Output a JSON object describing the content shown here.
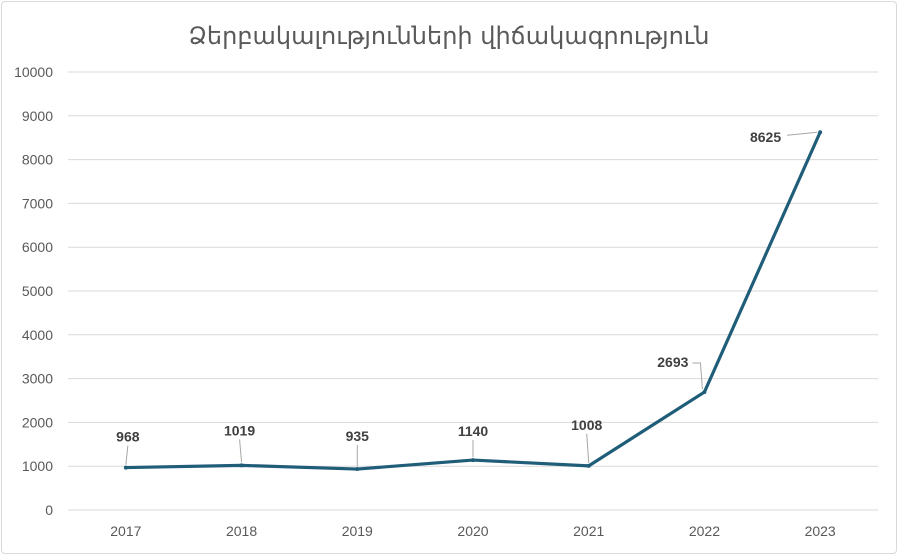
{
  "chart_data": {
    "type": "line",
    "title": "Ձերբակալությունների վիճակագրություն",
    "xlabel": "",
    "ylabel": "",
    "categories": [
      "2017",
      "2018",
      "2019",
      "2020",
      "2021",
      "2022",
      "2023"
    ],
    "series": [
      {
        "values": [
          968,
          1019,
          935,
          1140,
          1008,
          2693,
          8625
        ],
        "color": "#1f5d78"
      }
    ],
    "ylim": [
      0,
      10000
    ],
    "yticks": [
      "0",
      "1000",
      "2000",
      "3000",
      "4000",
      "5000",
      "6000",
      "7000",
      "8000",
      "9000",
      "10000"
    ],
    "data_labels": [
      "968",
      "1019",
      "935",
      "1140",
      "1008",
      "2693",
      "8625"
    ],
    "grid": true,
    "legend": "none"
  }
}
